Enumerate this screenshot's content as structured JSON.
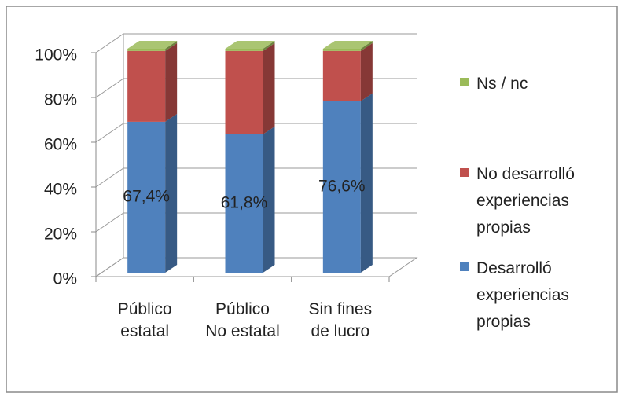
{
  "chart_data": {
    "type": "bar3d_stacked",
    "categories": [
      "Público estatal",
      "Público No estatal",
      "Sin fines de lucro"
    ],
    "series": [
      {
        "name": "Desarrolló experiencias propias",
        "color": "#4f81bd",
        "values": [
          67.4,
          61.8,
          76.6
        ],
        "value_labels": [
          "67,4%",
          "61,8%",
          "76,6%"
        ]
      },
      {
        "name": "No desarrolló experiencias propias",
        "color": "#c0504d",
        "values": [
          31.6,
          37.2,
          22.4
        ]
      },
      {
        "name": "Ns / nc",
        "color": "#9bbb59",
        "values": [
          1.0,
          1.0,
          1.0
        ]
      }
    ],
    "ylim": [
      0,
      100
    ],
    "yticks": [
      {
        "value": 0,
        "label": "0%"
      },
      {
        "value": 20,
        "label": "20%"
      },
      {
        "value": 40,
        "label": "40%"
      },
      {
        "value": 60,
        "label": "60%"
      },
      {
        "value": 80,
        "label": "80%"
      },
      {
        "value": 100,
        "label": "100%"
      }
    ],
    "grid": true,
    "legend": "right"
  }
}
